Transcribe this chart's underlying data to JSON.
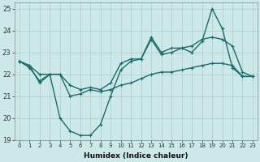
{
  "xlabel": "Humidex (Indice chaleur)",
  "background_color": "#cce8e8",
  "grid_color": "#aacccc",
  "line_color": "#1a6b6b",
  "xlim": [
    -0.5,
    23.5
  ],
  "ylim": [
    19,
    25.3
  ],
  "yticks": [
    19,
    20,
    21,
    22,
    23,
    24,
    25
  ],
  "xticks": [
    0,
    1,
    2,
    3,
    4,
    5,
    6,
    7,
    8,
    9,
    10,
    11,
    12,
    13,
    14,
    15,
    16,
    17,
    18,
    19,
    20,
    21,
    22,
    23
  ],
  "line1_x": [
    0,
    1,
    2,
    3,
    4,
    5,
    6,
    7,
    8,
    9,
    10,
    11,
    12,
    13,
    14,
    15,
    16,
    17,
    18,
    19,
    20,
    21,
    22,
    23
  ],
  "line1_y": [
    22.6,
    22.4,
    21.6,
    22.0,
    20.0,
    19.4,
    19.2,
    19.2,
    19.7,
    21.0,
    22.2,
    22.6,
    22.7,
    23.7,
    23.0,
    23.2,
    23.2,
    23.0,
    23.5,
    25.0,
    24.1,
    22.3,
    21.9,
    21.9
  ],
  "line2_x": [
    0,
    1,
    2,
    3,
    4,
    5,
    6,
    7,
    8,
    9,
    10,
    11,
    12,
    13,
    14,
    15,
    16,
    17,
    18,
    19,
    20,
    21,
    22,
    23
  ],
  "line2_y": [
    22.6,
    22.4,
    22.0,
    22.0,
    22.0,
    21.5,
    21.3,
    21.4,
    21.3,
    21.6,
    22.5,
    22.7,
    22.7,
    23.6,
    22.9,
    23.0,
    23.2,
    23.3,
    23.6,
    23.7,
    23.6,
    23.3,
    22.1,
    21.9
  ],
  "line3_x": [
    0,
    1,
    2,
    3,
    4,
    5,
    6,
    7,
    8,
    9,
    10,
    11,
    12,
    13,
    14,
    15,
    16,
    17,
    18,
    19,
    20,
    21,
    22,
    23
  ],
  "line3_y": [
    22.6,
    22.3,
    21.7,
    22.0,
    22.0,
    21.0,
    21.1,
    21.3,
    21.2,
    21.3,
    21.5,
    21.6,
    21.8,
    22.0,
    22.1,
    22.1,
    22.2,
    22.3,
    22.4,
    22.5,
    22.5,
    22.4,
    21.9,
    21.9
  ],
  "marker_size": 2.5,
  "linewidth": 1.0,
  "figwidth": 3.2,
  "figheight": 2.0,
  "dpi": 100
}
